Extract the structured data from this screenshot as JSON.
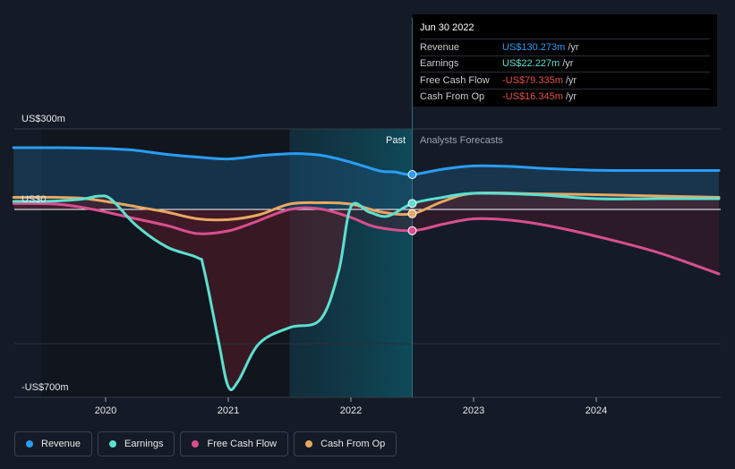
{
  "chart_data": {
    "type": "line",
    "title": "",
    "y_top_label": "US$300m",
    "y_zero_label": "US$0",
    "y_bottom_label": "-US$700m",
    "ylim": [
      -700,
      300
    ],
    "x_ticks": [
      "2020",
      "2021",
      "2022",
      "2023",
      "2024"
    ],
    "past_label": "Past",
    "forecast_label": "Analysts Forecasts",
    "divider_x": 2022.5,
    "highlight_start_x": 2021.5,
    "series": [
      {
        "name": "Revenue",
        "color": "#2a9df4",
        "fill": true,
        "points": [
          [
            2019.25,
            230
          ],
          [
            2019.6,
            230
          ],
          [
            2019.9,
            228
          ],
          [
            2020.2,
            222
          ],
          [
            2020.5,
            205
          ],
          [
            2020.75,
            195
          ],
          [
            2021.0,
            188
          ],
          [
            2021.3,
            202
          ],
          [
            2021.55,
            208
          ],
          [
            2021.75,
            202
          ],
          [
            2021.95,
            182
          ],
          [
            2022.1,
            162
          ],
          [
            2022.25,
            142
          ],
          [
            2022.35,
            140
          ],
          [
            2022.5,
            130
          ],
          [
            2022.75,
            150
          ],
          [
            2023.0,
            162
          ],
          [
            2023.3,
            160
          ],
          [
            2023.6,
            152
          ],
          [
            2024.0,
            146
          ],
          [
            2024.5,
            145
          ],
          [
            2025.0,
            145
          ]
        ]
      },
      {
        "name": "Earnings",
        "color": "#5ce0d0",
        "fill": false,
        "points": [
          [
            2019.25,
            30
          ],
          [
            2019.5,
            30
          ],
          [
            2019.8,
            38
          ],
          [
            2019.95,
            50
          ],
          [
            2020.05,
            36
          ],
          [
            2020.25,
            -60
          ],
          [
            2020.5,
            -140
          ],
          [
            2020.75,
            -180
          ],
          [
            2020.8,
            -220
          ],
          [
            2020.92,
            -490
          ],
          [
            2021.0,
            -660
          ],
          [
            2021.08,
            -640
          ],
          [
            2021.25,
            -500
          ],
          [
            2021.5,
            -440
          ],
          [
            2021.75,
            -410
          ],
          [
            2021.9,
            -230
          ],
          [
            2022.0,
            10
          ],
          [
            2022.15,
            -10
          ],
          [
            2022.3,
            -25
          ],
          [
            2022.5,
            22
          ],
          [
            2022.75,
            45
          ],
          [
            2023.0,
            60
          ],
          [
            2023.5,
            55
          ],
          [
            2024.0,
            40
          ],
          [
            2024.5,
            40
          ],
          [
            2025.0,
            40
          ]
        ]
      },
      {
        "name": "Free Cash Flow",
        "color": "#d84f8f",
        "fill": true,
        "points": [
          [
            2019.25,
            22
          ],
          [
            2019.6,
            20
          ],
          [
            2019.9,
            0
          ],
          [
            2020.2,
            -30
          ],
          [
            2020.5,
            -60
          ],
          [
            2020.75,
            -90
          ],
          [
            2021.0,
            -80
          ],
          [
            2021.2,
            -50
          ],
          [
            2021.5,
            0
          ],
          [
            2021.75,
            2
          ],
          [
            2022.0,
            -30
          ],
          [
            2022.2,
            -65
          ],
          [
            2022.5,
            -79
          ],
          [
            2022.75,
            -55
          ],
          [
            2023.0,
            -35
          ],
          [
            2023.3,
            -40
          ],
          [
            2023.6,
            -60
          ],
          [
            2024.0,
            -100
          ],
          [
            2024.5,
            -160
          ],
          [
            2025.0,
            -240
          ]
        ]
      },
      {
        "name": "Cash From Op",
        "color": "#e8a762",
        "fill": false,
        "points": [
          [
            2019.25,
            45
          ],
          [
            2019.6,
            45
          ],
          [
            2019.8,
            42
          ],
          [
            2020.0,
            30
          ],
          [
            2020.25,
            10
          ],
          [
            2020.5,
            -10
          ],
          [
            2020.75,
            -35
          ],
          [
            2021.0,
            -38
          ],
          [
            2021.25,
            -20
          ],
          [
            2021.5,
            20
          ],
          [
            2021.75,
            25
          ],
          [
            2022.0,
            20
          ],
          [
            2022.25,
            -10
          ],
          [
            2022.5,
            -16
          ],
          [
            2022.75,
            30
          ],
          [
            2023.0,
            60
          ],
          [
            2023.5,
            58
          ],
          [
            2024.0,
            55
          ],
          [
            2024.5,
            50
          ],
          [
            2025.0,
            45
          ]
        ]
      }
    ]
  },
  "tooltip": {
    "date": "Jun 30 2022",
    "rows": [
      {
        "label": "Revenue",
        "value": "US$130.273m",
        "unit": "/yr",
        "color": "#2a9df4"
      },
      {
        "label": "Earnings",
        "value": "US$22.227m",
        "unit": "/yr",
        "color": "#5ce0d0"
      },
      {
        "label": "Free Cash Flow",
        "value": "-US$79.335m",
        "unit": "/yr",
        "color": "#e8504a"
      },
      {
        "label": "Cash From Op",
        "value": "-US$16.345m",
        "unit": "/yr",
        "color": "#e8504a"
      }
    ]
  },
  "legend": [
    {
      "label": "Revenue",
      "color": "#2a9df4"
    },
    {
      "label": "Earnings",
      "color": "#5ce0d0"
    },
    {
      "label": "Free Cash Flow",
      "color": "#d84f8f"
    },
    {
      "label": "Cash From Op",
      "color": "#e8a762"
    }
  ]
}
